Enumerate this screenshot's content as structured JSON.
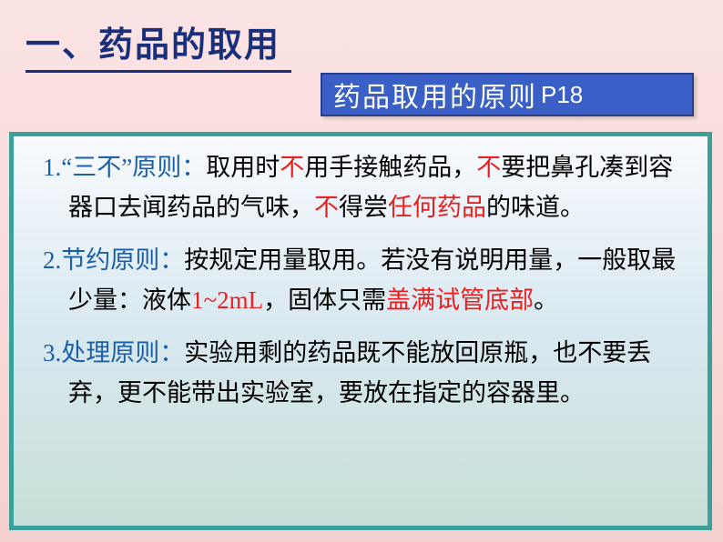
{
  "colors": {
    "title_color": "#1a2f7a",
    "subtitle_bg": "#3a5fc7",
    "subtitle_border": "#2a3f8a",
    "subtitle_text": "#ffffff",
    "content_border": "#3aa098",
    "number_color": "#1a5fa8",
    "red_text": "#e82020",
    "black_text": "#000000",
    "bg_gradient_top": "#fce4e4",
    "bg_gradient_bottom": "#f5d0d0",
    "content_bg_top": "#f8fafe",
    "content_bg_mid": "#d8e8f0",
    "content_bg_bottom": "#c8e0d8"
  },
  "typography": {
    "title_fontsize": 38,
    "subtitle_fontsize": 30,
    "body_fontsize": 27,
    "line_height": 44,
    "title_font": "SimSun",
    "subtitle_font": "SimHei"
  },
  "title": "一、药品的取用",
  "subtitle": {
    "text": "药品取用的原则",
    "page": "P18"
  },
  "rule1": {
    "num": "1.",
    "q1": "“",
    "label": "三不",
    "q2": "”",
    "label2": "原则：",
    "t1": "取用时",
    "r1": "不",
    "t2": "用手接触药品，",
    "r2": "不",
    "t3": "要把鼻孔凑到容器口去闻药品的气味，",
    "r3": "不",
    "t4": "得尝",
    "r4": "任何药品",
    "t5": "的味道。"
  },
  "rule2": {
    "num": "2.",
    "label": "节约原则：",
    "t1": "按规定用量取用。若没有说明用量，一般取最少量：液体",
    "r1": "1~2mL",
    "t2": "，固体只需",
    "r2": "盖满试管底部",
    "t3": "。"
  },
  "rule3": {
    "num": "3.",
    "label": "处理原则：",
    "t1": "实验用剩的药品既不能放回原瓶，也不要丢弃，更不能带出实验室，要放在指定的容器里。"
  }
}
